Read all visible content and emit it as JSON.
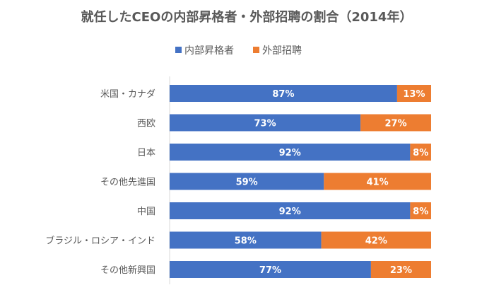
{
  "chart_data": {
    "type": "bar",
    "orientation": "horizontal",
    "stacked": true,
    "title": "就任したCEOの内部昇格者・外部招聘の割合（2014年）",
    "categories": [
      "米国・カナダ",
      "西欧",
      "日本",
      "その他先進国",
      "中国",
      "ブラジル・ロシア・インド",
      "その他新興国"
    ],
    "series": [
      {
        "name": "内部昇格者",
        "color": "#4472C4",
        "values": [
          87,
          73,
          92,
          59,
          92,
          58,
          77
        ],
        "labels": [
          "87%",
          "73%",
          "92%",
          "59%",
          "92%",
          "58%",
          "77%"
        ]
      },
      {
        "name": "外部招聘",
        "color": "#ED7D31",
        "values": [
          13,
          27,
          8,
          41,
          8,
          42,
          23
        ],
        "labels": [
          "13%",
          "27%",
          "8%",
          "41%",
          "8%",
          "42%",
          "23%"
        ]
      }
    ],
    "xlim": [
      0,
      100
    ],
    "legend": "top-center",
    "grid": false
  }
}
